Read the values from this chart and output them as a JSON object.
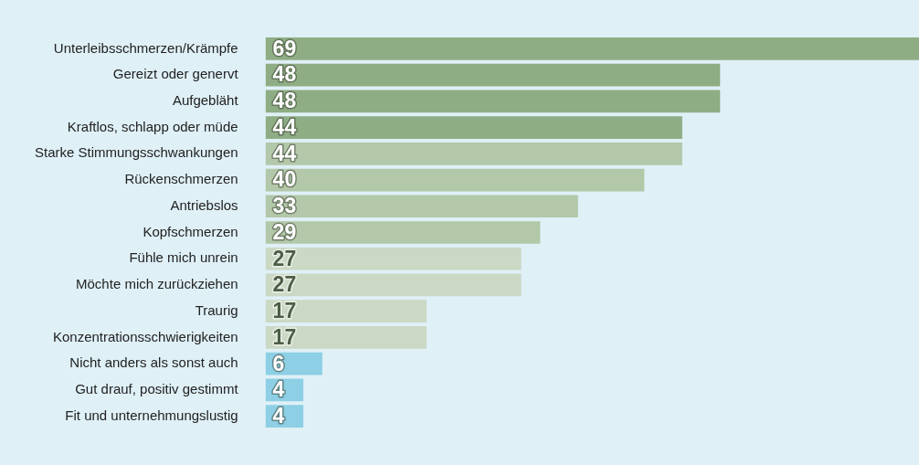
{
  "chart_data": {
    "type": "bar",
    "orientation": "horizontal",
    "categories": [
      "Unterleibsschmerzen/Krämpfe",
      "Gereizt oder genervt",
      "Aufgebläht",
      "Kraftlos, schlapp oder müde",
      "Starke Stimmungsschwankungen",
      "Rückenschmerzen",
      "Antriebslos",
      "Kopfschmerzen",
      "Fühle mich unrein",
      "Möchte mich zurückziehen",
      "Traurig",
      "Konzentrationsschwierigkeiten",
      "Nicht anders als sonst auch",
      "Gut drauf, positiv gestimmt",
      "Fit und unternehmungslustig"
    ],
    "values": [
      69,
      48,
      48,
      44,
      44,
      40,
      33,
      29,
      27,
      27,
      17,
      17,
      6,
      4,
      4
    ],
    "colors": [
      "#8fad84",
      "#8fad84",
      "#8fad84",
      "#8fad84",
      "#b3c7a9",
      "#b3c7a9",
      "#b3c7a9",
      "#b3c7a9",
      "#cbd8c4",
      "#cbd8c4",
      "#cbd8c4",
      "#cbd8c4",
      "#8dcfe4",
      "#8dcfe4",
      "#8dcfe4"
    ],
    "data_labels": true,
    "grid": false,
    "legend": false
  }
}
